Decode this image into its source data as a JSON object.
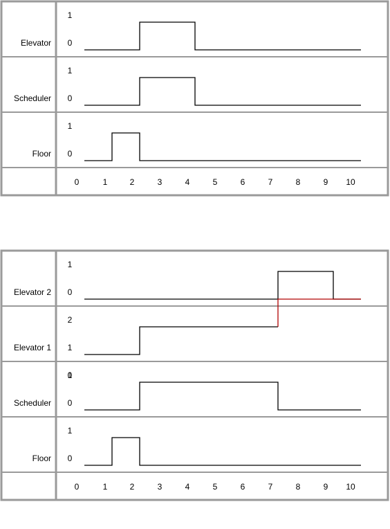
{
  "diagrams": [
    {
      "rows": [
        {
          "label": "Elevator",
          "levels": [
            "1",
            "0"
          ],
          "signal": [
            [
              0,
              0
            ],
            [
              2,
              0
            ],
            [
              2,
              1
            ],
            [
              4,
              1
            ],
            [
              4,
              0
            ],
            [
              10,
              0
            ]
          ],
          "color": "#000000"
        },
        {
          "label": "Scheduler",
          "levels": [
            "1",
            "0"
          ],
          "signal": [
            [
              0,
              0
            ],
            [
              2,
              0
            ],
            [
              2,
              1
            ],
            [
              4,
              1
            ],
            [
              4,
              0
            ],
            [
              10,
              0
            ]
          ],
          "color": "#000000"
        },
        {
          "label": "Floor",
          "levels": [
            "1",
            "0"
          ],
          "signal": [
            [
              0,
              0
            ],
            [
              1,
              0
            ],
            [
              1,
              1
            ],
            [
              2,
              1
            ],
            [
              2,
              0
            ],
            [
              10,
              0
            ]
          ],
          "color": "#000000"
        }
      ],
      "axis": [
        "0",
        "1",
        "2",
        "3",
        "4",
        "5",
        "6",
        "7",
        "8",
        "9",
        "10"
      ]
    },
    {
      "rows": [
        {
          "label": "Elevator 2",
          "levels": [
            "1",
            "0"
          ],
          "signal": [
            [
              0,
              0
            ],
            [
              7,
              0
            ],
            [
              7,
              1
            ],
            [
              9,
              1
            ],
            [
              9,
              0
            ],
            [
              10,
              0
            ]
          ],
          "color": "#000000"
        },
        {
          "label": "Elevator 1",
          "levels": [
            "2",
            "1",
            "0"
          ],
          "signal": [
            [
              0,
              0
            ],
            [
              2,
              0
            ],
            [
              2,
              1
            ],
            [
              7,
              1
            ]
          ],
          "color": "#000000",
          "extra": {
            "signal": [
              [
                7,
                1
              ],
              [
                7,
                2
              ],
              [
                10,
                2
              ]
            ],
            "color": "#b00000"
          }
        },
        {
          "label": "Scheduler",
          "levels": [
            "1",
            "0"
          ],
          "signal": [
            [
              0,
              0
            ],
            [
              2,
              0
            ],
            [
              2,
              1
            ],
            [
              7,
              1
            ],
            [
              7,
              0
            ],
            [
              10,
              0
            ]
          ],
          "color": "#000000"
        },
        {
          "label": "Floor",
          "levels": [
            "1",
            "0"
          ],
          "signal": [
            [
              0,
              0
            ],
            [
              1,
              0
            ],
            [
              1,
              1
            ],
            [
              2,
              1
            ],
            [
              2,
              0
            ],
            [
              10,
              0
            ]
          ],
          "color": "#000000"
        }
      ],
      "axis": [
        "0",
        "1",
        "2",
        "3",
        "4",
        "5",
        "6",
        "7",
        "8",
        "9",
        "10"
      ]
    }
  ]
}
